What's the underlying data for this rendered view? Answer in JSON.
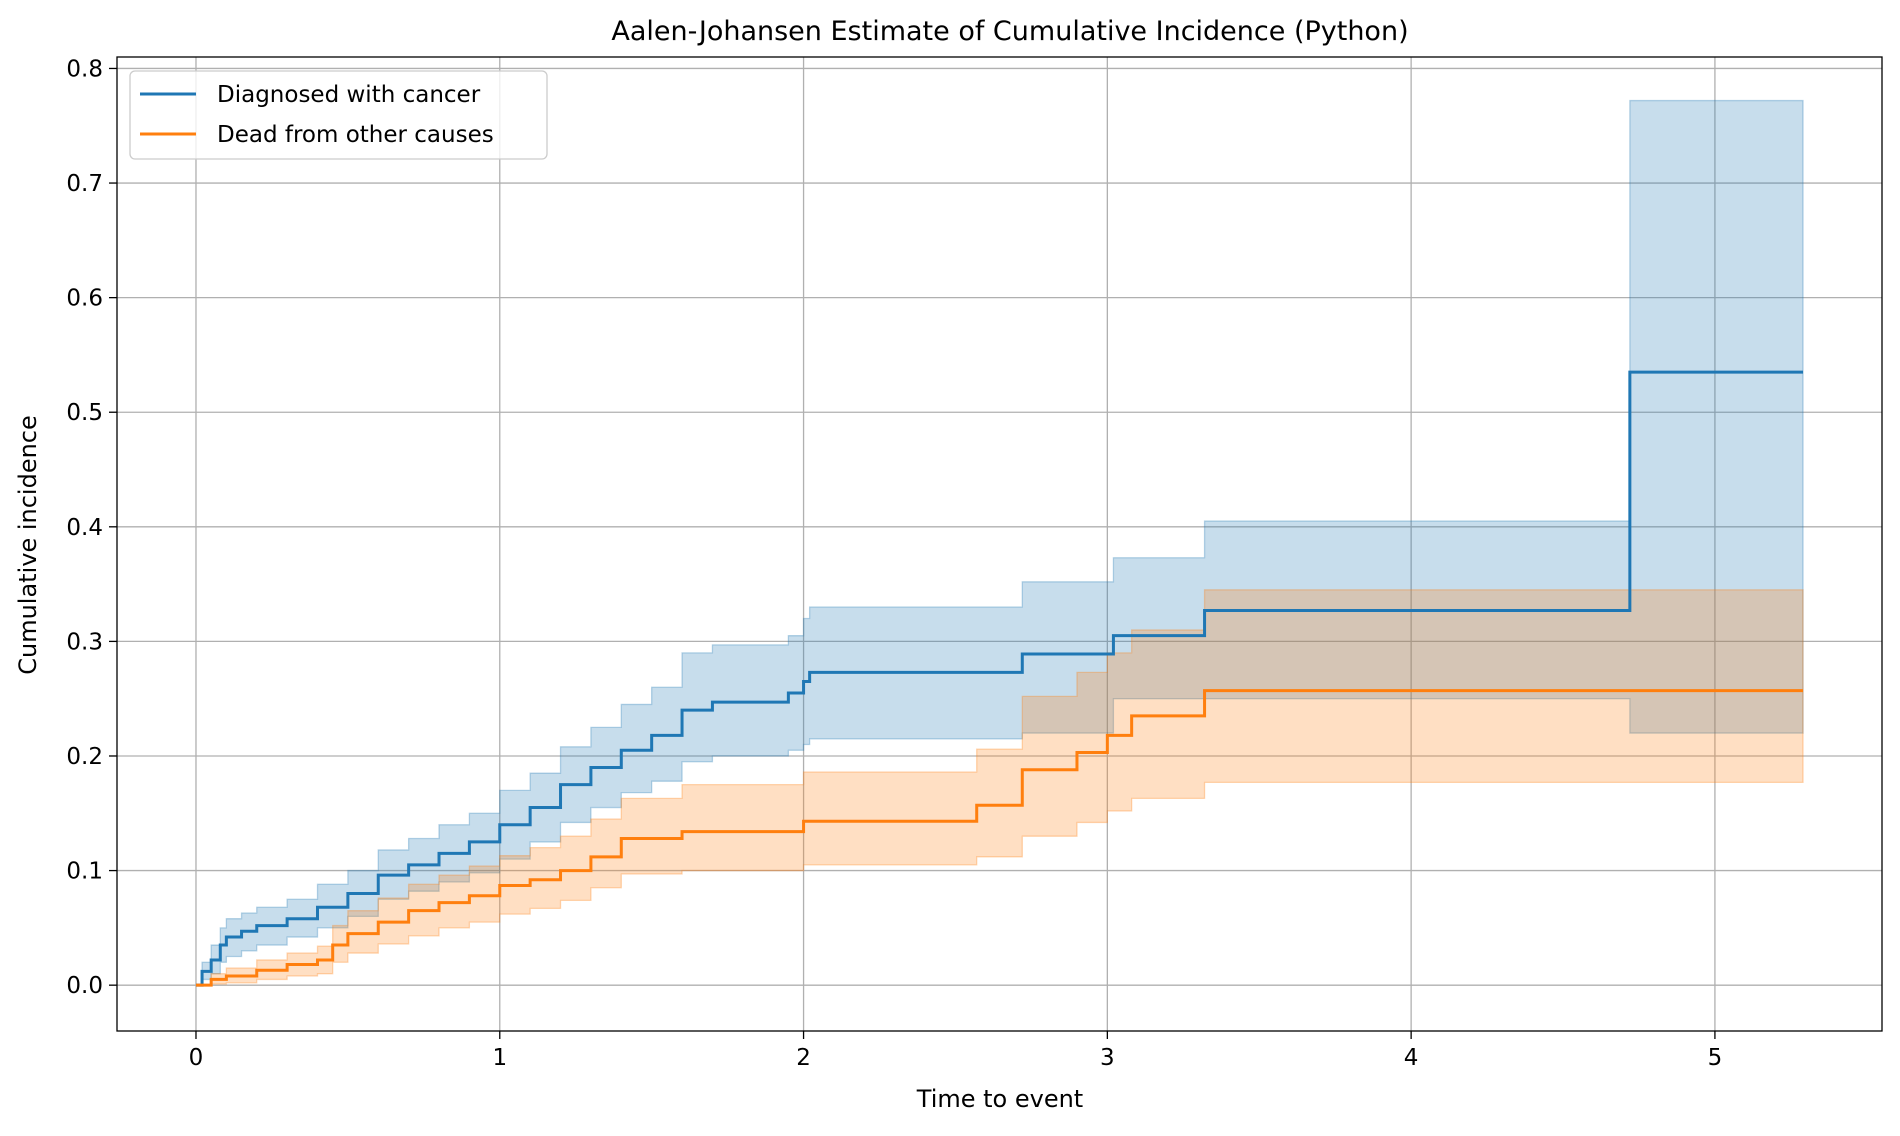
{
  "chart_data": {
    "type": "line",
    "title": "Aalen-Johansen Estimate of Cumulative Incidence (Python)",
    "xlabel": "Time to event",
    "ylabel": "Cumulative incidence",
    "xlim": [
      -0.26,
      5.55
    ],
    "ylim": [
      -0.04,
      0.81
    ],
    "xticks": [
      0,
      1,
      2,
      3,
      4,
      5
    ],
    "yticks": [
      0.0,
      0.1,
      0.2,
      0.3,
      0.4,
      0.5,
      0.6,
      0.7,
      0.8
    ],
    "xtick_labels": [
      "0",
      "1",
      "2",
      "3",
      "4",
      "5"
    ],
    "ytick_labels": [
      "0.0",
      "0.1",
      "0.2",
      "0.3",
      "0.4",
      "0.5",
      "0.6",
      "0.7",
      "0.8"
    ],
    "grid": true,
    "legend_position": "top-left",
    "series": [
      {
        "name": "Diagnosed with cancer",
        "color": "#1f77b4",
        "x": [
          0,
          0.02,
          0.05,
          0.08,
          0.1,
          0.15,
          0.2,
          0.3,
          0.4,
          0.5,
          0.6,
          0.7,
          0.8,
          0.9,
          1.0,
          1.1,
          1.2,
          1.3,
          1.4,
          1.5,
          1.6,
          1.7,
          1.95,
          2.0,
          2.02,
          2.72,
          3.02,
          3.32,
          4.72,
          5.29
        ],
        "y": [
          0,
          0.012,
          0.022,
          0.035,
          0.042,
          0.047,
          0.052,
          0.058,
          0.068,
          0.08,
          0.096,
          0.105,
          0.115,
          0.125,
          0.14,
          0.155,
          0.175,
          0.19,
          0.205,
          0.218,
          0.24,
          0.247,
          0.255,
          0.265,
          0.273,
          0.289,
          0.305,
          0.327,
          0.535,
          0.535
        ],
        "ci_low": [
          0,
          0.005,
          0.01,
          0.02,
          0.025,
          0.03,
          0.035,
          0.042,
          0.05,
          0.06,
          0.075,
          0.082,
          0.09,
          0.098,
          0.11,
          0.125,
          0.142,
          0.155,
          0.168,
          0.178,
          0.195,
          0.2,
          0.205,
          0.21,
          0.215,
          0.22,
          0.25,
          0.25,
          0.22,
          0.22
        ],
        "ci_high": [
          0,
          0.02,
          0.035,
          0.05,
          0.058,
          0.063,
          0.068,
          0.075,
          0.088,
          0.1,
          0.118,
          0.128,
          0.14,
          0.15,
          0.17,
          0.185,
          0.208,
          0.225,
          0.245,
          0.26,
          0.29,
          0.297,
          0.305,
          0.32,
          0.33,
          0.352,
          0.373,
          0.405,
          0.772,
          0.772
        ]
      },
      {
        "name": "Dead from other causes",
        "color": "#ff7f0e",
        "x": [
          0,
          0.05,
          0.1,
          0.2,
          0.3,
          0.4,
          0.45,
          0.5,
          0.6,
          0.7,
          0.8,
          0.9,
          1.0,
          1.1,
          1.2,
          1.3,
          1.4,
          1.6,
          2.0,
          2.57,
          2.72,
          2.9,
          3.0,
          3.08,
          3.32,
          5.29
        ],
        "y": [
          0,
          0.005,
          0.008,
          0.013,
          0.018,
          0.022,
          0.035,
          0.045,
          0.055,
          0.065,
          0.072,
          0.078,
          0.087,
          0.092,
          0.1,
          0.112,
          0.128,
          0.134,
          0.143,
          0.157,
          0.188,
          0.203,
          0.218,
          0.235,
          0.257,
          0.257
        ],
        "ci_low": [
          0,
          0.001,
          0.002,
          0.005,
          0.008,
          0.01,
          0.02,
          0.028,
          0.036,
          0.043,
          0.05,
          0.055,
          0.062,
          0.067,
          0.074,
          0.085,
          0.097,
          0.1,
          0.105,
          0.112,
          0.13,
          0.142,
          0.152,
          0.163,
          0.177,
          0.177
        ],
        "ci_high": [
          0,
          0.01,
          0.015,
          0.022,
          0.028,
          0.034,
          0.052,
          0.065,
          0.076,
          0.088,
          0.096,
          0.104,
          0.113,
          0.12,
          0.13,
          0.145,
          0.163,
          0.175,
          0.186,
          0.206,
          0.252,
          0.273,
          0.29,
          0.31,
          0.345,
          0.345
        ]
      }
    ]
  }
}
